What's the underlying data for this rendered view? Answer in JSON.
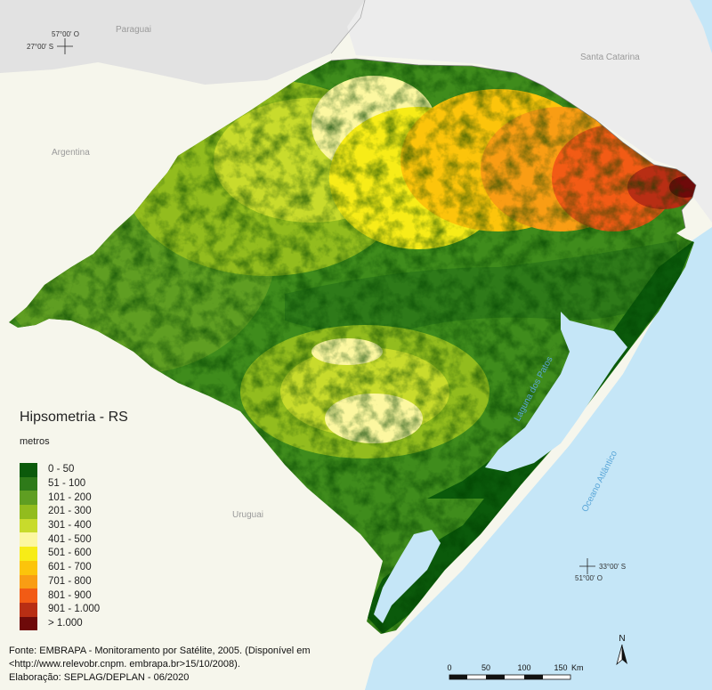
{
  "map": {
    "places": {
      "paraguai": "Paraguai",
      "santa_catarina": "Santa Catarina",
      "argentina": "Argentina",
      "uruguai": "Uruguai",
      "laguna": "Laguna dos Patos",
      "oceano": "Oceano Atlântico"
    },
    "coords": {
      "nw_lon": "57°00' O",
      "nw_lat": "27°00' S",
      "se_lat": "33°00' S",
      "se_lon": "51°00' O"
    }
  },
  "legend": {
    "title": "Hipsometria - RS",
    "unit": "metros",
    "classes": [
      {
        "label": "0 - 50",
        "color": "#0b5a0b"
      },
      {
        "label": "51 - 100",
        "color": "#2e7a19"
      },
      {
        "label": "101 - 200",
        "color": "#5f9e22"
      },
      {
        "label": "201 - 300",
        "color": "#92bc1e"
      },
      {
        "label": "301 - 400",
        "color": "#c8db2c"
      },
      {
        "label": "401 - 500",
        "color": "#fcf7a0"
      },
      {
        "label": "501 - 600",
        "color": "#f7ec17"
      },
      {
        "label": "601 - 700",
        "color": "#fcc40b"
      },
      {
        "label": "701 - 800",
        "color": "#f99d14"
      },
      {
        "label": "801 - 900",
        "color": "#f25b15"
      },
      {
        "label": "901 - 1.000",
        "color": "#b82e14"
      },
      {
        "label": "> 1.000",
        "color": "#6e0a0a"
      }
    ]
  },
  "source": {
    "line1": "Fonte: EMBRAPA - Monitoramento por Satélite, 2005. (Disponível em",
    "line2": "<http://www.relevobr.cnpm. embrapa.br>15/10/2008).",
    "line3": "Elaboração: SEPLAG/DEPLAN - 06/2020"
  },
  "scale": {
    "ticks": [
      "0",
      "50",
      "100",
      "150"
    ],
    "unit": "Km"
  },
  "north": {
    "label": "N"
  }
}
